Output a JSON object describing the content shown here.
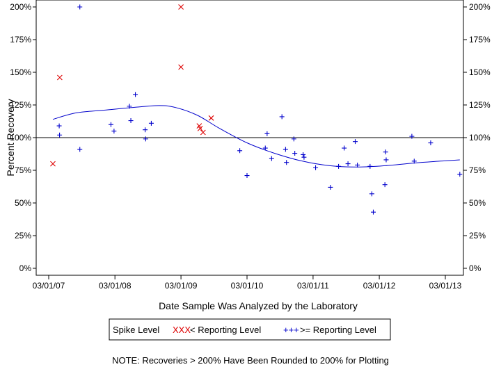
{
  "chart_data": {
    "type": "scatter",
    "xlabel": "Date Sample Was Analyzed by the Laboratory",
    "ylabel": "Percent Recovery",
    "x_tick_labels": [
      "03/01/07",
      "03/01/08",
      "03/01/09",
      "03/01/10",
      "03/01/11",
      "03/01/12",
      "03/01/13"
    ],
    "x_ticks": [
      "2007-03-01",
      "2008-03-01",
      "2009-03-01",
      "2010-03-01",
      "2011-03-01",
      "2012-03-01",
      "2013-03-01"
    ],
    "xlim": [
      "2007-03-01",
      "2013-03-01"
    ],
    "y_tick_labels": [
      "0%",
      "25%",
      "50%",
      "75%",
      "100%",
      "125%",
      "150%",
      "175%",
      "200%"
    ],
    "y_ticks": [
      0,
      25,
      50,
      75,
      100,
      125,
      150,
      175,
      200
    ],
    "ylim": [
      0,
      200
    ],
    "reference_line": 100,
    "legend": {
      "title": "Spike Level",
      "position": "bottom-center",
      "entries": [
        {
          "marker": "XXX",
          "label": "< Reporting Level",
          "color": "#dd0000"
        },
        {
          "marker": "+++",
          "label": ">= Reporting Level",
          "color": "#0000cc"
        }
      ]
    },
    "series": [
      {
        "name": "< Reporting Level",
        "marker": "x",
        "color": "#dd0000",
        "points": [
          {
            "x": "2007-03-24",
            "y": 80
          },
          {
            "x": "2007-05-01",
            "y": 146
          },
          {
            "x": "2009-03-01",
            "y": 200
          },
          {
            "x": "2009-03-01",
            "y": 154
          },
          {
            "x": "2009-06-10",
            "y": 109
          },
          {
            "x": "2009-06-15",
            "y": 107
          },
          {
            "x": "2009-07-01",
            "y": 104
          },
          {
            "x": "2009-08-15",
            "y": 115
          }
        ]
      },
      {
        "name": ">= Reporting Level",
        "marker": "+",
        "color": "#0000cc",
        "points": [
          {
            "x": "2007-04-28",
            "y": 109
          },
          {
            "x": "2007-04-30",
            "y": 102
          },
          {
            "x": "2007-08-20",
            "y": 200
          },
          {
            "x": "2007-08-20",
            "y": 91
          },
          {
            "x": "2008-02-08",
            "y": 110
          },
          {
            "x": "2008-02-25",
            "y": 105
          },
          {
            "x": "2008-05-20",
            "y": 124
          },
          {
            "x": "2008-05-28",
            "y": 113
          },
          {
            "x": "2008-06-22",
            "y": 133
          },
          {
            "x": "2008-08-15",
            "y": 106
          },
          {
            "x": "2008-08-18",
            "y": 99
          },
          {
            "x": "2008-09-18",
            "y": 111
          },
          {
            "x": "2010-01-20",
            "y": 90
          },
          {
            "x": "2010-03-01",
            "y": 71
          },
          {
            "x": "2010-06-10",
            "y": 92
          },
          {
            "x": "2010-06-20",
            "y": 103
          },
          {
            "x": "2010-07-15",
            "y": 84
          },
          {
            "x": "2010-09-10",
            "y": 116
          },
          {
            "x": "2010-09-30",
            "y": 91
          },
          {
            "x": "2010-10-05",
            "y": 81
          },
          {
            "x": "2010-11-15",
            "y": 99
          },
          {
            "x": "2010-11-20",
            "y": 88
          },
          {
            "x": "2011-01-05",
            "y": 87
          },
          {
            "x": "2011-01-10",
            "y": 85
          },
          {
            "x": "2011-03-15",
            "y": 77
          },
          {
            "x": "2011-06-05",
            "y": 62
          },
          {
            "x": "2011-07-20",
            "y": 78
          },
          {
            "x": "2011-08-20",
            "y": 92
          },
          {
            "x": "2011-09-10",
            "y": 80
          },
          {
            "x": "2011-10-20",
            "y": 97
          },
          {
            "x": "2011-11-01",
            "y": 79
          },
          {
            "x": "2012-01-10",
            "y": 78
          },
          {
            "x": "2012-01-20",
            "y": 57
          },
          {
            "x": "2012-01-28",
            "y": 43
          },
          {
            "x": "2012-04-01",
            "y": 64
          },
          {
            "x": "2012-04-05",
            "y": 89
          },
          {
            "x": "2012-04-08",
            "y": 83
          },
          {
            "x": "2012-08-28",
            "y": 101
          },
          {
            "x": "2012-09-10",
            "y": 82
          },
          {
            "x": "2012-12-10",
            "y": 96
          },
          {
            "x": "2013-05-20",
            "y": 72
          }
        ]
      }
    ],
    "trend_line": {
      "color": "#0000cc",
      "points": [
        {
          "x": "2007-03-24",
          "y": 114
        },
        {
          "x": "2007-08-01",
          "y": 119
        },
        {
          "x": "2008-01-01",
          "y": 121
        },
        {
          "x": "2008-06-01",
          "y": 123
        },
        {
          "x": "2008-11-01",
          "y": 124.5
        },
        {
          "x": "2009-02-01",
          "y": 123
        },
        {
          "x": "2009-06-01",
          "y": 117
        },
        {
          "x": "2009-10-01",
          "y": 107
        },
        {
          "x": "2010-03-01",
          "y": 96
        },
        {
          "x": "2010-08-01",
          "y": 88
        },
        {
          "x": "2011-01-01",
          "y": 82
        },
        {
          "x": "2011-06-01",
          "y": 78.5
        },
        {
          "x": "2011-11-01",
          "y": 77.5
        },
        {
          "x": "2012-04-01",
          "y": 78.5
        },
        {
          "x": "2012-09-01",
          "y": 80.5
        },
        {
          "x": "2013-02-01",
          "y": 82
        },
        {
          "x": "2013-05-20",
          "y": 83
        }
      ]
    },
    "grid": false,
    "note": "NOTE: Recoveries > 200% Have Been Rounded to 200% for Plotting"
  }
}
